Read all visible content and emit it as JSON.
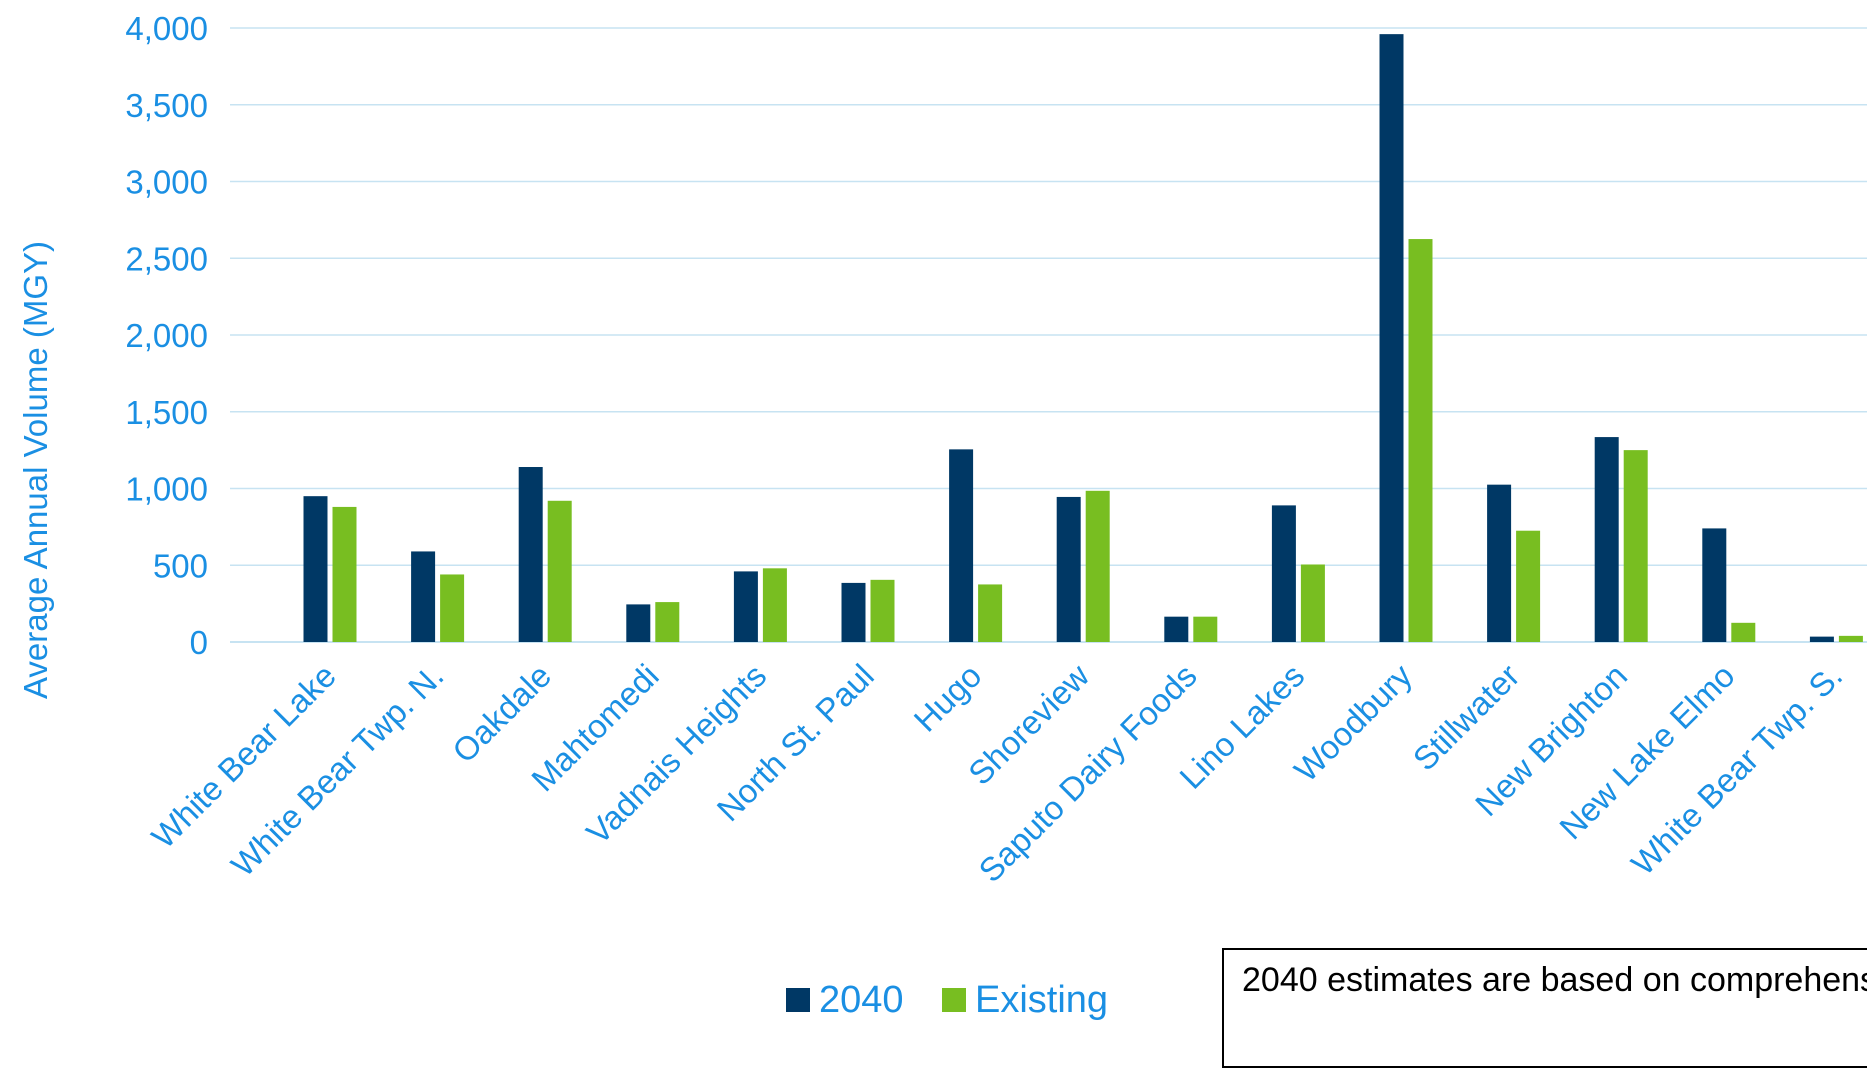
{
  "colors": {
    "series_2040": "#003865",
    "series_existing": "#78BE21",
    "axis_text": "#1A8FE3",
    "gridline": "#C7E3F2",
    "baseline": "#C7E3F2",
    "note_text": "#000000",
    "note_border": "#000000"
  },
  "chart_data": {
    "type": "bar",
    "title": "",
    "xlabel": "",
    "ylabel": "Average Annual Volume (MGY)",
    "ylim": [
      0,
      4000
    ],
    "yticks": [
      0,
      500,
      1000,
      1500,
      2000,
      2500,
      3000,
      3500,
      4000
    ],
    "ytick_labels": [
      "0",
      "500",
      "1,000",
      "1,500",
      "2,000",
      "2,500",
      "3,000",
      "3,500",
      "4,000"
    ],
    "grid": true,
    "legend_position": "bottom",
    "categories": [
      "White Bear Lake",
      "White Bear Twp. N.",
      "Oakdale",
      "Mahtomedi",
      "Vadnais Heights",
      "North St. Paul",
      "Hugo",
      "Shoreview",
      "Saputo Dairy Foods",
      "Lino Lakes",
      "Woodbury",
      "Stillwater",
      "New Brighton",
      "New Lake Elmo",
      "White Bear Twp. S."
    ],
    "series": [
      {
        "name": "2040",
        "values": [
          950,
          590,
          1140,
          245,
          460,
          385,
          1255,
          945,
          165,
          890,
          3960,
          1025,
          1335,
          740,
          35
        ]
      },
      {
        "name": "Existing",
        "values": [
          880,
          440,
          920,
          260,
          480,
          405,
          375,
          985,
          165,
          505,
          2625,
          725,
          1250,
          125,
          40
        ]
      }
    ]
  },
  "note": {
    "text": "2040 estimates are based on comprehens"
  }
}
